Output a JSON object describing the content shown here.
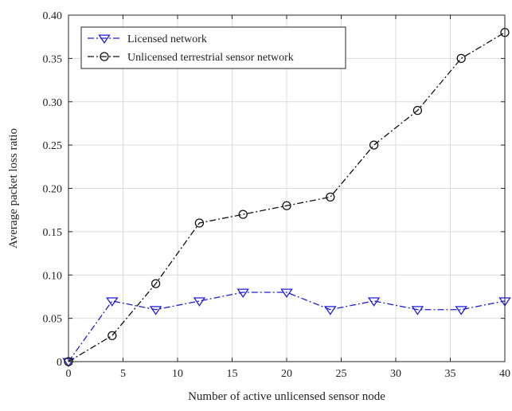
{
  "chart_data": {
    "type": "line",
    "title": "",
    "xlabel": "Number of active unlicensed sensor node",
    "ylabel": "Average packet loss ratio",
    "xlim": [
      0,
      40
    ],
    "ylim": [
      0,
      0.4
    ],
    "xticks": [
      0,
      5,
      10,
      15,
      20,
      25,
      30,
      35,
      40
    ],
    "xtick_labels": [
      "0",
      "5",
      "10",
      "15",
      "20",
      "25",
      "30",
      "35",
      "40"
    ],
    "yticks": [
      0,
      0.05,
      0.1,
      0.15,
      0.2,
      0.25,
      0.3,
      0.35,
      0.4
    ],
    "ytick_labels": [
      "0",
      "0.05",
      "0.10",
      "0.15",
      "0.20",
      "0.25",
      "0.30",
      "0.35",
      "0.40"
    ],
    "grid": true,
    "legend_position": "top-left",
    "series": [
      {
        "name": "Licensed network",
        "color": "#1f1fd6",
        "line_style": "dash-dot",
        "marker": "triangle-down",
        "x": [
          0,
          4,
          8,
          12,
          16,
          20,
          24,
          28,
          32,
          36,
          40
        ],
        "y": [
          0,
          0.07,
          0.06,
          0.07,
          0.08,
          0.08,
          0.06,
          0.07,
          0.06,
          0.06,
          0.07
        ]
      },
      {
        "name": "Unlicensed terrestrial sensor network",
        "color": "#111111",
        "line_style": "dash-dot",
        "marker": "circle",
        "x": [
          0,
          4,
          8,
          12,
          16,
          20,
          24,
          28,
          32,
          36,
          40
        ],
        "y": [
          0,
          0.03,
          0.09,
          0.16,
          0.17,
          0.18,
          0.19,
          0.25,
          0.29,
          0.35,
          0.38
        ]
      }
    ]
  }
}
